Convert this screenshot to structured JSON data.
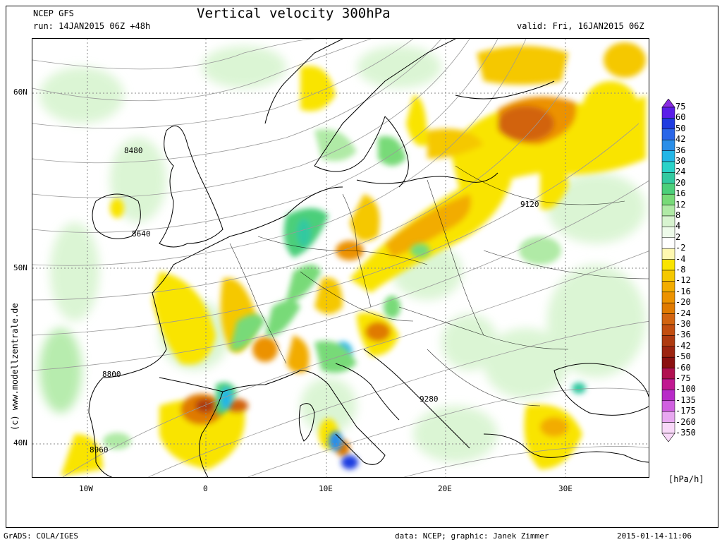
{
  "header": {
    "model": "NCEP GFS",
    "run": "run: 14JAN2015 06Z +48h",
    "title": "Vertical velocity 300hPa",
    "valid": "valid: Fri, 16JAN2015 06Z"
  },
  "map": {
    "lat_labels": [
      "60N",
      "50N",
      "40N"
    ],
    "lon_labels": [
      "10W",
      "0",
      "10E",
      "20E",
      "30E"
    ],
    "contour_labels": [
      "8480",
      "8640",
      "8800",
      "8960",
      "9120",
      "9280"
    ]
  },
  "legend": {
    "values": [
      "75",
      "60",
      "50",
      "42",
      "36",
      "30",
      "24",
      "20",
      "16",
      "12",
      "8",
      "4",
      "2",
      "-2",
      "-4",
      "-8",
      "-12",
      "-16",
      "-20",
      "-24",
      "-30",
      "-36",
      "-42",
      "-50",
      "-60",
      "-75",
      "-100",
      "-135",
      "-175",
      "-260",
      "-350"
    ],
    "colors": [
      "#8a2be2",
      "#5a1ee8",
      "#1f3ce0",
      "#2a66e8",
      "#2a8ee8",
      "#22b6e6",
      "#2ad2c8",
      "#33c9a0",
      "#4ccf7a",
      "#78da78",
      "#b0eaa6",
      "#d8f4d0",
      "#eefbea",
      "#ffffff",
      "#fff8b0",
      "#f9e400",
      "#f5c800",
      "#f2ac00",
      "#ec9200",
      "#e07a00",
      "#d26410",
      "#c24e10",
      "#ae3a10",
      "#9c2410",
      "#8a1010",
      "#b01050",
      "#c01890",
      "#b82ac8",
      "#d060e0",
      "#e8a8f0",
      "#f8d8f8"
    ],
    "unit": "[hPa/h]"
  },
  "copyright": "(c) www.modellzentrale.de",
  "footer": {
    "left": "GrADS: COLA/IGES",
    "middle": "data: NCEP; graphic: Janek Zimmer",
    "right": "2015-01-14-11:06"
  }
}
